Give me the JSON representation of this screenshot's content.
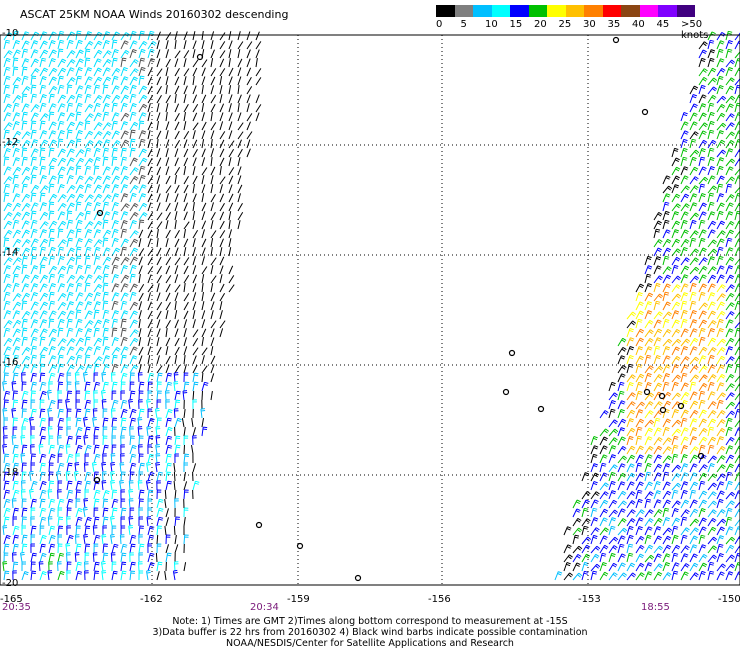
{
  "title": "ASCAT 25KM NOAA Winds 20160302 descending",
  "legend": {
    "labels": [
      "0",
      "5",
      "10",
      "15",
      "20",
      "25",
      "30",
      "35",
      "40",
      "45",
      ">50 knots"
    ],
    "colors": [
      "#000000",
      "#7f7f7f",
      "#00bfff",
      "#00ffff",
      "#0000ff",
      "#00c000",
      "#ffff00",
      "#ffc000",
      "#ff8000",
      "#ff0000",
      "#8b4513",
      "#ff00ff",
      "#8000ff",
      "#400080"
    ]
  },
  "axes": {
    "lat_labels": [
      "-10",
      "-12",
      "-14",
      "-16",
      "-18",
      "-20"
    ],
    "lon_labels": [
      "-165",
      "-162",
      "-159",
      "-156",
      "-153",
      "-150"
    ],
    "time_labels": [
      "20:35",
      "20:34",
      "18:55"
    ]
  },
  "notes": [
    "Note: 1) Times are GMT 2)Times along bottom correspond to measurement at -15S",
    "3)Data buffer is 22 hrs from 20160302 4) Black wind barbs indicate possible contamination",
    "NOAA/NESDIS/Center for Satellite Applications and Research"
  ]
}
